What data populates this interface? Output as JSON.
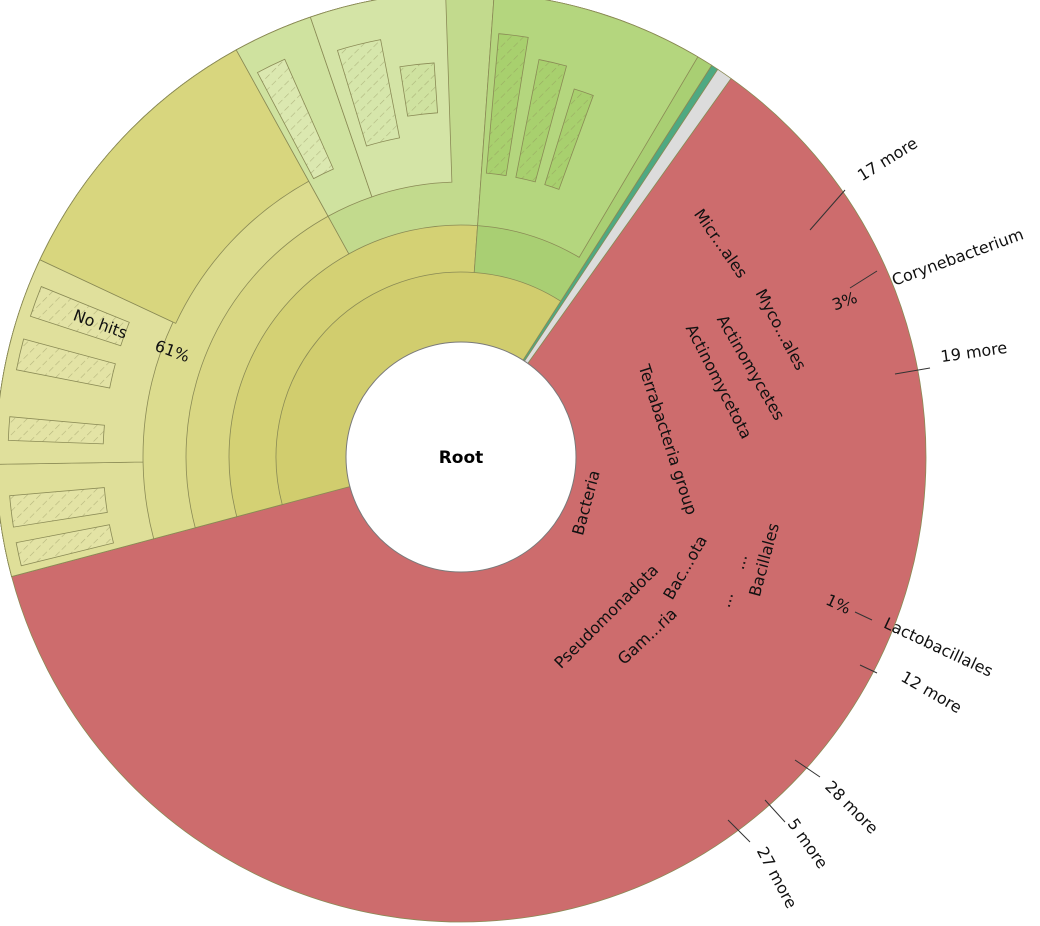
{
  "chart_data": {
    "type": "sunburst",
    "root_label": "Root",
    "root_children": [
      {
        "name": "No hits",
        "percent": "61%",
        "value": 61,
        "color": "#cd6c6d"
      },
      {
        "name": "Bacteria",
        "value": 38.2,
        "color": "#d1cd6e"
      },
      {
        "name": "",
        "value": 0.25,
        "color": "#4ea982"
      },
      {
        "name": "",
        "value": 0.55,
        "color": "#dcdcdc"
      }
    ],
    "bacteria_children": [
      {
        "name": "Terrabacteria group",
        "color": "#d4d174"
      },
      {
        "name": "Pseudomonadota",
        "color": "#a9cf73"
      }
    ],
    "terrabacteria_children": [
      {
        "name": "Actinomycetota",
        "color": "#d9d783"
      },
      {
        "name": "Bac...ota",
        "color": "#c2da8d"
      }
    ],
    "actinomycetota_children": [
      {
        "name": "Actinomycetes",
        "color": "#dcdc8e"
      }
    ],
    "actinomycetes_children": [
      {
        "name": "Micr...ales",
        "color": "#dfdf99"
      },
      {
        "name": "Myco...ales",
        "color": "#e0e09c"
      }
    ],
    "bacillota_children": [
      {
        "name": "Bacillales",
        "color": "#cfe29f"
      },
      {
        "name": "...",
        "color": "#d4e4a6"
      },
      {
        "name": "...",
        "color": "#d4e4a6"
      }
    ],
    "pseudomonadota_children": [
      {
        "name": "Gam...ria",
        "color": "#b4d67e"
      }
    ],
    "leaf_labels": [
      {
        "name": "17 more",
        "percent": ""
      },
      {
        "name": "Corynebacterium",
        "percent": "3%"
      },
      {
        "name": "19 more",
        "percent": ""
      },
      {
        "name": "Lactobacillales",
        "percent": "1%"
      },
      {
        "name": "12 more",
        "percent": ""
      },
      {
        "name": "28 more",
        "percent": ""
      },
      {
        "name": "5 more",
        "percent": ""
      },
      {
        "name": "27 more",
        "percent": ""
      }
    ]
  }
}
